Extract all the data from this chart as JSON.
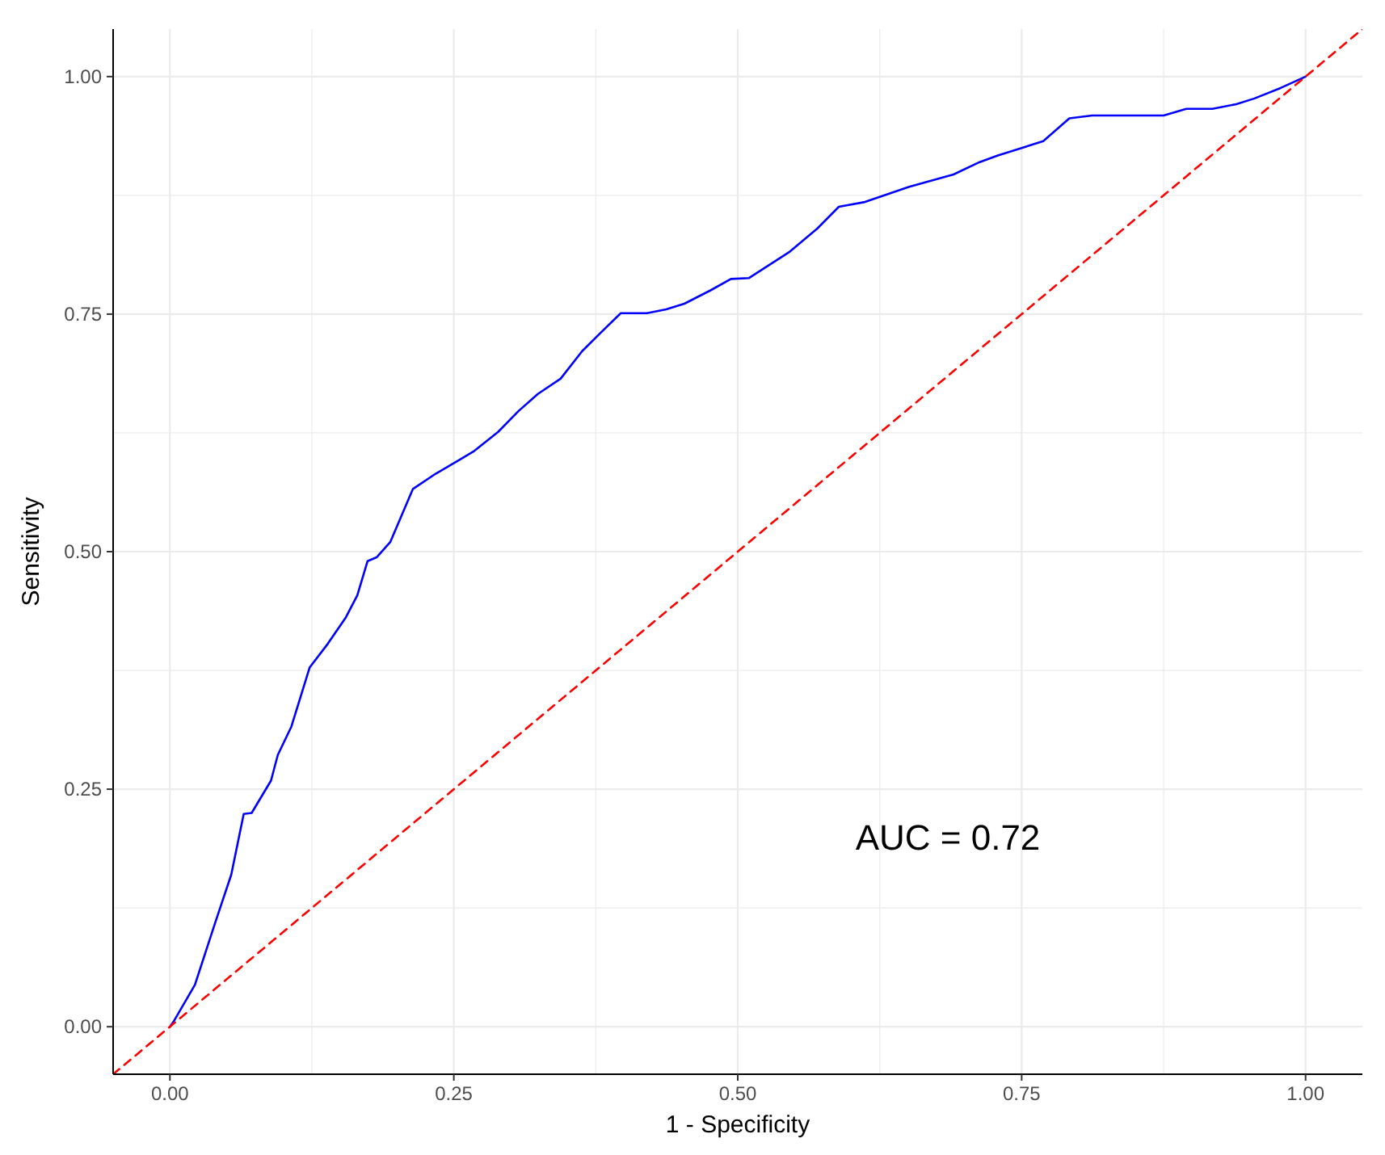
{
  "chart_data": {
    "type": "line",
    "xlabel": "1 - Specificity",
    "ylabel": "Sensitivity",
    "xlim": [
      -0.05,
      1.05
    ],
    "ylim": [
      -0.05,
      1.05
    ],
    "xticks": [
      {
        "value": 0,
        "label": "0.00"
      },
      {
        "value": 0.125,
        "label": null
      },
      {
        "value": 0.25,
        "label": "0.25"
      },
      {
        "value": 0.375,
        "label": null
      },
      {
        "value": 0.5,
        "label": "0.50"
      },
      {
        "value": 0.625,
        "label": null
      },
      {
        "value": 0.75,
        "label": "0.75"
      },
      {
        "value": 0.875,
        "label": null
      },
      {
        "value": 1,
        "label": "1.00"
      }
    ],
    "yticks": [
      {
        "value": 0,
        "label": "0.00"
      },
      {
        "value": 0.125,
        "label": null
      },
      {
        "value": 0.25,
        "label": "0.25"
      },
      {
        "value": 0.375,
        "label": null
      },
      {
        "value": 0.5,
        "label": "0.50"
      },
      {
        "value": 0.625,
        "label": null
      },
      {
        "value": 0.75,
        "label": "0.75"
      },
      {
        "value": 0.875,
        "label": null
      },
      {
        "value": 1,
        "label": "1.00"
      }
    ],
    "grid": true,
    "marker": "none",
    "annotations": [
      "AUC = 0.72"
    ],
    "series": [
      {
        "color": "#0000ff",
        "line_style": "solid",
        "x": [
          0,
          0.003,
          0.022,
          0.04,
          0.054,
          0.065,
          0.072,
          0.089,
          0.095,
          0.107,
          0.123,
          0.139,
          0.155,
          0.165,
          0.174,
          0.182,
          0.194,
          0.214,
          0.234,
          0.254,
          0.268,
          0.289,
          0.307,
          0.324,
          0.344,
          0.363,
          0.379,
          0.397,
          0.42,
          0.437,
          0.453,
          0.476,
          0.494,
          0.51,
          0.545,
          0.57,
          0.589,
          0.612,
          0.651,
          0.69,
          0.713,
          0.729,
          0.769,
          0.792,
          0.812,
          0.875,
          0.895,
          0.918,
          0.939,
          0.955,
          0.978,
          1
        ],
        "values": [
          0,
          0.005,
          0.044,
          0.11,
          0.16,
          0.224,
          0.225,
          0.259,
          0.286,
          0.316,
          0.378,
          0.403,
          0.431,
          0.454,
          0.49,
          0.494,
          0.51,
          0.566,
          0.582,
          0.596,
          0.606,
          0.626,
          0.648,
          0.666,
          0.682,
          0.711,
          0.73,
          0.751,
          0.751,
          0.755,
          0.761,
          0.775,
          0.787,
          0.788,
          0.815,
          0.84,
          0.863,
          0.868,
          0.884,
          0.897,
          0.91,
          0.917,
          0.932,
          0.956,
          0.959,
          0.959,
          0.966,
          0.966,
          0.971,
          0.977,
          0.988,
          1
        ]
      },
      {
        "color": "#ff0000",
        "line_style": "dashed",
        "x": [
          -0.05,
          1.05
        ],
        "values": [
          -0.05,
          1.05
        ]
      }
    ]
  }
}
